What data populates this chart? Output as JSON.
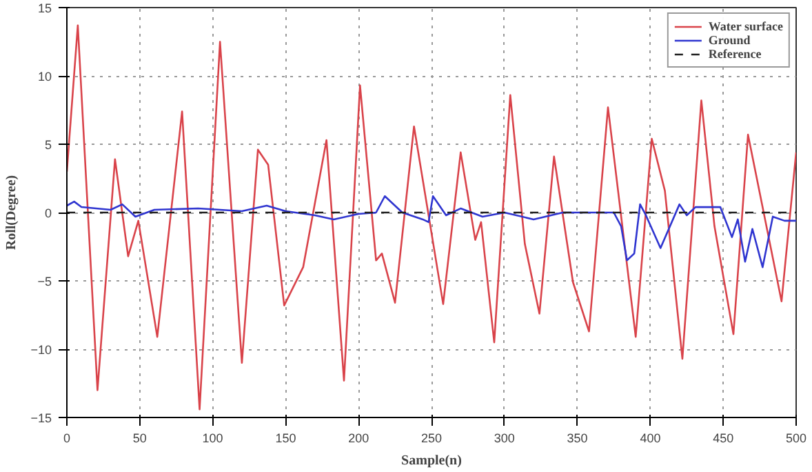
{
  "chart_data": {
    "type": "line",
    "xlabel": "Sample(n)",
    "ylabel": "Roll(Degree)",
    "xlim": [
      0,
      500
    ],
    "ylim": [
      -15,
      15
    ],
    "xticks": [
      0,
      50,
      100,
      150,
      200,
      250,
      300,
      350,
      400,
      450,
      500
    ],
    "yticks": [
      -15,
      -10,
      -5,
      0,
      5,
      10,
      15
    ],
    "grid": true,
    "legend": "top right",
    "series": [
      {
        "name": "Water surface",
        "color": "#d9434a",
        "line_style": "solid",
        "x": [
          0,
          7.5,
          21,
          33,
          42,
          49,
          62,
          79,
          91,
          105,
          120,
          131,
          138,
          149,
          162,
          178,
          190,
          201,
          212,
          216,
          225,
          238,
          258,
          270,
          280,
          284,
          293,
          304,
          314,
          324,
          334,
          347,
          358,
          371,
          390,
          401,
          410,
          422,
          435,
          444,
          457,
          467,
          490,
          500
        ],
        "values": [
          3,
          13.7,
          -13,
          3.9,
          -3.2,
          -0.6,
          -9.1,
          7.4,
          -14.4,
          12.5,
          -11,
          4.6,
          3.5,
          -6.8,
          -4,
          5.3,
          -12.3,
          9.3,
          -3.5,
          -3,
          -6.6,
          6.3,
          -6.7,
          4.4,
          -2,
          -0.7,
          -9.5,
          8.6,
          -2.3,
          -7.4,
          4.1,
          -5.1,
          -8.7,
          7.7,
          -9.1,
          5.4,
          1.6,
          -10.7,
          8.2,
          -1,
          -8.9,
          5.7,
          -6.5,
          4.4
        ]
      },
      {
        "name": "Ground",
        "color": "#2f35d0",
        "line_style": "solid",
        "x": [
          0,
          5,
          10,
          30,
          38,
          47,
          60,
          90,
          120,
          137,
          150,
          170,
          183,
          200,
          212,
          218,
          230,
          244,
          248,
          251,
          260,
          270,
          285,
          300,
          320,
          340,
          375,
          380,
          384,
          389,
          393,
          397,
          407,
          420,
          425,
          431,
          448,
          456,
          460,
          465,
          470,
          477,
          484,
          492,
          500
        ],
        "values": [
          0.5,
          0.8,
          0.4,
          0.2,
          0.6,
          -0.3,
          0.2,
          0.3,
          0.1,
          0.5,
          0.1,
          -0.2,
          -0.5,
          -0.1,
          0,
          1.2,
          0,
          -0.5,
          -0.7,
          1.2,
          -0.2,
          0.3,
          -0.3,
          0,
          -0.5,
          0,
          0,
          -1,
          -3.5,
          -3,
          0.6,
          -0.2,
          -2.6,
          0.6,
          -0.2,
          0.4,
          0.4,
          -1.8,
          -0.5,
          -3.6,
          -1.2,
          -4,
          -0.3,
          -0.6,
          -0.6
        ]
      },
      {
        "name": "Reference",
        "color": "#222222",
        "line_style": "dashed",
        "x": [
          0,
          500
        ],
        "values": [
          0,
          0
        ]
      }
    ]
  }
}
